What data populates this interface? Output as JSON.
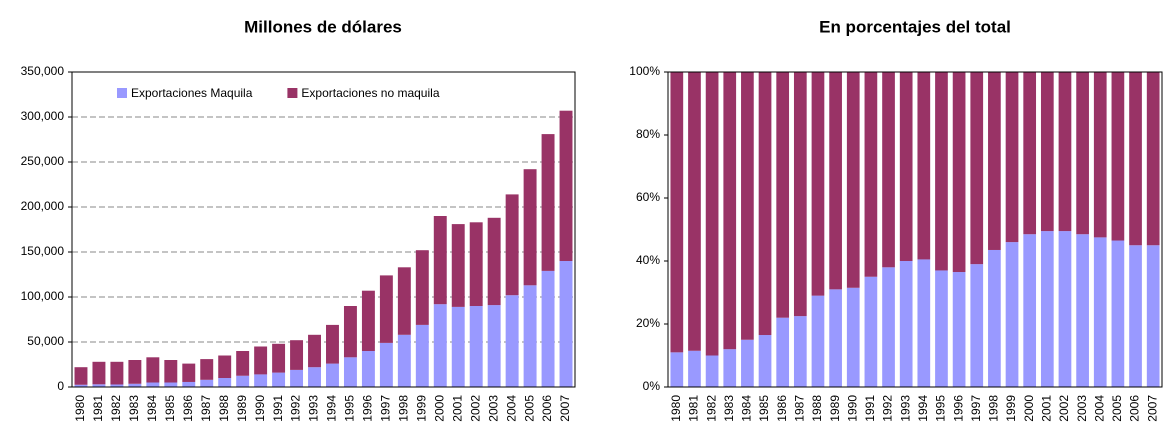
{
  "chart_data": [
    {
      "type": "bar",
      "stacked": true,
      "title": "Millones de dólares",
      "grid": true,
      "legend": "top",
      "categories": [
        "1980",
        "1981",
        "1982",
        "1983",
        "1984",
        "1985",
        "1986",
        "1987",
        "1988",
        "1989",
        "1990",
        "1991",
        "1992",
        "1993",
        "1994",
        "1995",
        "1996",
        "1997",
        "1998",
        "1999",
        "2000",
        "2001",
        "2002",
        "2003",
        "2004",
        "2005",
        "2006",
        "2007"
      ],
      "series": [
        {
          "name": "Exportaciones Maquila",
          "color": "#9999ff",
          "values": [
            2500,
            3000,
            2800,
            3600,
            5000,
            5000,
            5600,
            8000,
            10000,
            12500,
            14000,
            16000,
            19000,
            22000,
            26000,
            33000,
            40000,
            49000,
            58000,
            69000,
            92000,
            89000,
            90000,
            91000,
            102000,
            113000,
            129000,
            140000
          ]
        },
        {
          "name": "Exportaciones no maquila",
          "color": "#993366",
          "values": [
            19500,
            25000,
            25200,
            26400,
            28000,
            25000,
            20400,
            23000,
            25000,
            27500,
            31000,
            32000,
            33000,
            36000,
            43000,
            57000,
            67000,
            75000,
            75000,
            83000,
            98000,
            92000,
            93000,
            97000,
            112000,
            129000,
            152000,
            167000
          ]
        }
      ],
      "ylim": [
        0,
        350000
      ],
      "yticks": [
        0,
        {
          "value": 50000,
          "label": "50,000"
        },
        {
          "value": 100000,
          "label": "100,000"
        },
        {
          "value": 150000,
          "label": "150,000"
        },
        {
          "value": 200000,
          "label": "200,000"
        },
        {
          "value": 250000,
          "label": "250,000"
        },
        {
          "value": 300000,
          "label": "300,000"
        },
        {
          "value": 350000,
          "label": "350,000"
        }
      ]
    },
    {
      "type": "bar",
      "stacked": true,
      "title": "En porcentajes del total",
      "grid": false,
      "categories": [
        "1980",
        "1981",
        "1982",
        "1983",
        "1984",
        "1985",
        "1986",
        "1987",
        "1988",
        "1989",
        "1990",
        "1991",
        "1992",
        "1993",
        "1994",
        "1995",
        "1996",
        "1997",
        "1998",
        "1999",
        "2000",
        "2001",
        "2002",
        "2003",
        "2004",
        "2005",
        "2006",
        "2007"
      ],
      "series": [
        {
          "color": "#9999ff",
          "values": [
            11,
            11.5,
            10,
            12,
            15,
            16.5,
            22,
            22.5,
            29,
            31,
            31.5,
            35,
            38,
            40,
            40.5,
            37,
            36.5,
            39,
            43.5,
            46,
            48.5,
            49.5,
            49.5,
            48.5,
            47.5,
            46.5,
            45,
            45
          ]
        },
        {
          "color": "#993366",
          "values": [
            89,
            88.5,
            90,
            88,
            85,
            83.5,
            78,
            77.5,
            71,
            69,
            68.5,
            65,
            62,
            60,
            59.5,
            63,
            63.5,
            61,
            56.5,
            54,
            51.5,
            50.5,
            50.5,
            51.5,
            52.5,
            53.5,
            55,
            55
          ]
        }
      ],
      "ylim": [
        0,
        100
      ],
      "yticks": [
        {
          "value": 0,
          "label": "0%"
        },
        {
          "value": 20,
          "label": "20%"
        },
        {
          "value": 40,
          "label": "40%"
        },
        {
          "value": 60,
          "label": "60%"
        },
        {
          "value": 80,
          "label": "80%"
        },
        {
          "value": 100,
          "label": "100%"
        }
      ]
    }
  ]
}
